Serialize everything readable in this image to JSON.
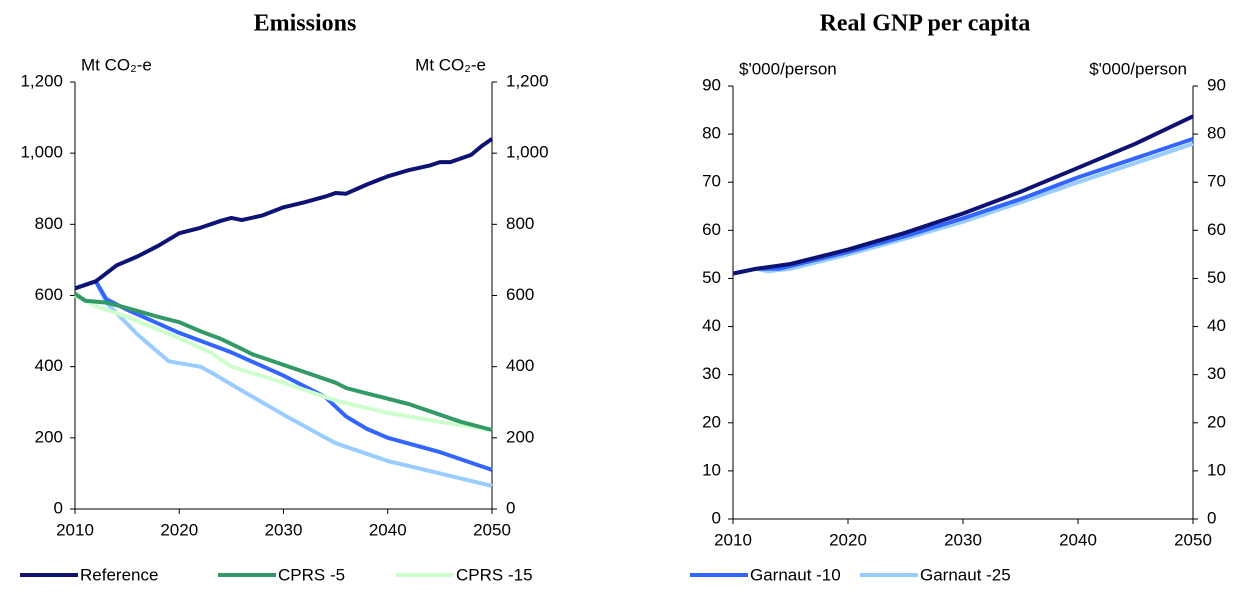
{
  "chart_data": [
    {
      "type": "line",
      "title": "Emissions",
      "y_label": "Mt CO₂-e",
      "xlim": [
        2010,
        2050
      ],
      "xticks": [
        2010,
        2020,
        2030,
        2040,
        2050
      ],
      "ylim": [
        0,
        1200
      ],
      "yticks": [
        0,
        200,
        400,
        600,
        800,
        {
          "value": 1000,
          "label": "1,000"
        },
        {
          "value": 1200,
          "label": "1,200"
        }
      ],
      "series": [
        {
          "name": "Reference",
          "color": "#0d1273",
          "x": [
            2010,
            2012,
            2014,
            2016,
            2018,
            2020,
            2022,
            2024,
            2025,
            2026,
            2028,
            2030,
            2032,
            2034,
            2035,
            2036,
            2038,
            2040,
            2042,
            2044,
            2045,
            2046,
            2048,
            2049,
            2050
          ],
          "values": [
            620,
            640,
            685,
            710,
            740,
            775,
            790,
            810,
            818,
            812,
            825,
            848,
            862,
            878,
            888,
            886,
            912,
            935,
            952,
            965,
            975,
            975,
            995,
            1020,
            1040
          ]
        },
        {
          "name": "CPRS -5",
          "color": "#339966",
          "x": [
            2010,
            2011,
            2013,
            2015,
            2018,
            2020,
            2022,
            2024,
            2026,
            2027,
            2030,
            2032,
            2035,
            2036,
            2038,
            2040,
            2042,
            2045,
            2047,
            2050
          ],
          "values": [
            605,
            585,
            580,
            565,
            540,
            525,
            500,
            478,
            450,
            435,
            405,
            385,
            355,
            340,
            325,
            310,
            295,
            265,
            245,
            222
          ]
        },
        {
          "name": "CPRS -15",
          "color": "#ccffcc",
          "x": [
            2010,
            2012,
            2015,
            2020,
            2023,
            2025,
            2030,
            2035,
            2040,
            2045,
            2050
          ],
          "values": [
            600,
            570,
            540,
            480,
            440,
            400,
            355,
            305,
            270,
            245,
            222
          ]
        },
        {
          "name": "Garnaut -10",
          "color": "#3366ff",
          "x": [
            2010,
            2012,
            2013,
            2015,
            2020,
            2025,
            2030,
            2034,
            2036,
            2038,
            2040,
            2045,
            2050
          ],
          "values": [
            620,
            640,
            590,
            560,
            495,
            440,
            375,
            315,
            260,
            225,
            200,
            160,
            110
          ]
        },
        {
          "name": "Garnaut -25",
          "color": "#99ccff",
          "x": [
            2010,
            2012,
            2013,
            2016,
            2019,
            2022,
            2023,
            2025,
            2030,
            2035,
            2040,
            2045,
            2050
          ],
          "values": [
            620,
            640,
            580,
            490,
            415,
            400,
            385,
            350,
            265,
            185,
            135,
            100,
            65
          ]
        }
      ]
    },
    {
      "type": "line",
      "title": "Real GNP per capita",
      "y_label": "$'000/person",
      "xlim": [
        2010,
        2050
      ],
      "xticks": [
        2010,
        2020,
        2030,
        2040,
        2050
      ],
      "ylim": [
        0,
        90
      ],
      "yticks": [
        0,
        10,
        20,
        30,
        40,
        50,
        60,
        70,
        80,
        90
      ],
      "series": [
        {
          "color": "#0d1273",
          "x": [
            2010,
            2012,
            2015,
            2020,
            2025,
            2030,
            2035,
            2040,
            2045,
            2050
          ],
          "values": [
            51,
            52,
            53,
            56,
            59.5,
            63.5,
            68,
            73,
            78,
            83.7
          ]
        },
        {
          "color": "#3366ff",
          "x": [
            2010,
            2012,
            2014,
            2020,
            2025,
            2030,
            2035,
            2040,
            2045,
            2050
          ],
          "values": [
            51,
            52,
            52,
            55.5,
            58.8,
            62.5,
            66.5,
            71,
            75,
            79
          ]
        },
        {
          "color": "#99ccff",
          "x": [
            2010,
            2012,
            2013,
            2015,
            2020,
            2025,
            2030,
            2035,
            2040,
            2045,
            2050
          ],
          "values": [
            51,
            52,
            51.5,
            52,
            55,
            58.3,
            61.8,
            65.8,
            70,
            74,
            78
          ]
        }
      ]
    }
  ]
}
